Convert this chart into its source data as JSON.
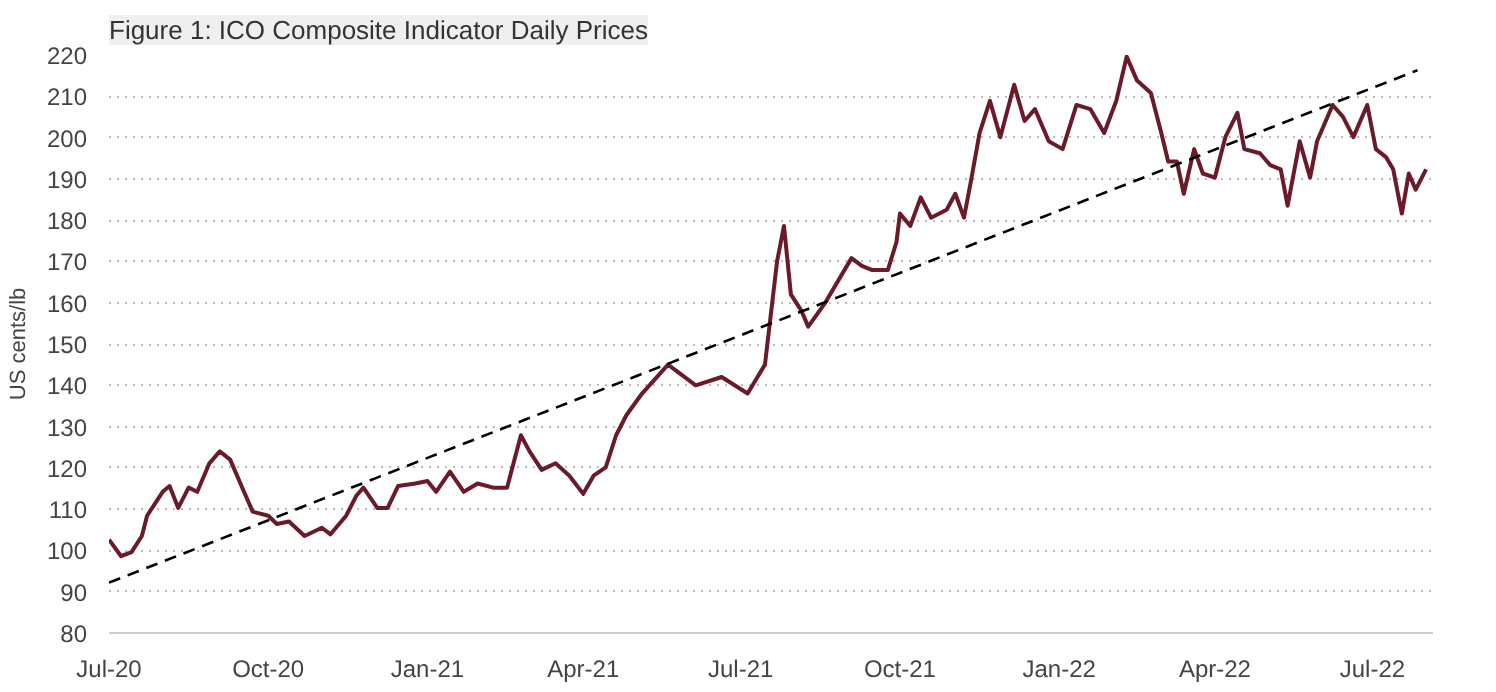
{
  "chart_data": {
    "type": "line",
    "title": "Figure 1: ICO Composite Indicator Daily Prices",
    "ylabel": "US cents/lb",
    "xlim": [
      "2020-07-01",
      "2022-08-05"
    ],
    "ylim": [
      80,
      220
    ],
    "yticks": [
      80,
      90,
      100,
      110,
      120,
      130,
      140,
      150,
      160,
      170,
      180,
      190,
      200,
      210,
      220
    ],
    "xticks": [
      {
        "value": "2020-07-01",
        "label": "Jul-20"
      },
      {
        "value": "2020-10-01",
        "label": "Oct-20"
      },
      {
        "value": "2021-01-01",
        "label": "Jan-21"
      },
      {
        "value": "2021-04-01",
        "label": "Apr-21"
      },
      {
        "value": "2021-07-01",
        "label": "Jul-21"
      },
      {
        "value": "2021-10-01",
        "label": "Oct-21"
      },
      {
        "value": "2022-01-01",
        "label": "Jan-22"
      },
      {
        "value": "2022-04-01",
        "label": "Apr-22"
      },
      {
        "value": "2022-07-01",
        "label": "Jul-22"
      }
    ],
    "grid": "y",
    "series": [
      {
        "color": "#6b1a2a",
        "line_style": "solid",
        "x": [
          "2020-07-01",
          "2020-07-08",
          "2020-07-14",
          "2020-07-20",
          "2020-07-23",
          "2020-08-01",
          "2020-08-05",
          "2020-08-10",
          "2020-08-16",
          "2020-08-21",
          "2020-08-28",
          "2020-09-03",
          "2020-09-09",
          "2020-09-16",
          "2020-09-22",
          "2020-10-01",
          "2020-10-06",
          "2020-10-13",
          "2020-10-22",
          "2020-11-01",
          "2020-11-06",
          "2020-11-15",
          "2020-11-21",
          "2020-11-25",
          "2020-12-03",
          "2020-12-09",
          "2020-12-15",
          "2020-12-25",
          "2021-01-01",
          "2021-01-06",
          "2021-01-14",
          "2021-01-22",
          "2021-01-30",
          "2021-02-08",
          "2021-02-16",
          "2021-02-24",
          "2021-03-01",
          "2021-03-08",
          "2021-03-16",
          "2021-03-24",
          "2021-04-01",
          "2021-04-07",
          "2021-04-14",
          "2021-04-20",
          "2021-04-26",
          "2021-05-05",
          "2021-05-20",
          "2021-06-05",
          "2021-06-20",
          "2021-07-05",
          "2021-07-15",
          "2021-07-22",
          "2021-07-26",
          "2021-07-30",
          "2021-08-05",
          "2021-08-09",
          "2021-08-19",
          "2021-09-03",
          "2021-09-09",
          "2021-09-15",
          "2021-09-24",
          "2021-09-29",
          "2021-10-01",
          "2021-10-07",
          "2021-10-13",
          "2021-10-19",
          "2021-10-28",
          "2021-11-02",
          "2021-11-07",
          "2021-11-11",
          "2021-11-16",
          "2021-11-22",
          "2021-11-28",
          "2021-12-06",
          "2021-12-12",
          "2021-12-18",
          "2021-12-26",
          "2022-01-03",
          "2022-01-11",
          "2022-01-19",
          "2022-01-27",
          "2022-02-03",
          "2022-02-09",
          "2022-02-15",
          "2022-02-23",
          "2022-03-01",
          "2022-03-05",
          "2022-03-10",
          "2022-03-14",
          "2022-03-20",
          "2022-03-25",
          "2022-04-01",
          "2022-04-07",
          "2022-04-14",
          "2022-04-18",
          "2022-04-27",
          "2022-05-03",
          "2022-05-09",
          "2022-05-13",
          "2022-05-20",
          "2022-05-26",
          "2022-05-30",
          "2022-06-08",
          "2022-06-14",
          "2022-06-20",
          "2022-06-28",
          "2022-07-03",
          "2022-07-09",
          "2022-07-13",
          "2022-07-18",
          "2022-07-22",
          "2022-07-26",
          "2022-08-01"
        ],
        "values": [
          102.6,
          98.6,
          99.6,
          103.5,
          108.4,
          114.2,
          115.6,
          110.3,
          115.2,
          114.2,
          121.1,
          124,
          122,
          115.2,
          109.4,
          108.4,
          106.4,
          107,
          103.5,
          105.5,
          103.9,
          108.4,
          113.3,
          115.2,
          110.3,
          110.3,
          115.6,
          116.2,
          116.8,
          114.2,
          119.1,
          114.2,
          116.2,
          115.2,
          115.2,
          127.9,
          124,
          119.5,
          121.1,
          118.1,
          113.7,
          118.1,
          120.1,
          127.9,
          132.8,
          138,
          145,
          140,
          142,
          138,
          145,
          170,
          178.6,
          162,
          158.1,
          154.2,
          160.1,
          170.8,
          168.9,
          167.9,
          167.9,
          174.7,
          181.6,
          178.6,
          185.5,
          180.6,
          182.5,
          186.4,
          180.6,
          189.4,
          201.1,
          208.9,
          200.1,
          212.8,
          204,
          206.9,
          199.1,
          197.2,
          207.9,
          206.9,
          201.1,
          208.9,
          219.6,
          213.8,
          210.8,
          201.1,
          194.2,
          194.2,
          186.4,
          197.2,
          191.3,
          190.3,
          200.1,
          206,
          197.2,
          196.2,
          193.3,
          192.3,
          183.5,
          199.1,
          190.3,
          199.1,
          207.9,
          205,
          200.1,
          207.9,
          197.2,
          195.2,
          192.3,
          181.6,
          191.3,
          187.4,
          192.3
        ]
      },
      {
        "color": "#000000",
        "line_style": "dashed",
        "x": [
          "2020-07-01",
          "2022-07-27"
        ],
        "values": [
          92.2,
          216.3
        ]
      }
    ]
  }
}
